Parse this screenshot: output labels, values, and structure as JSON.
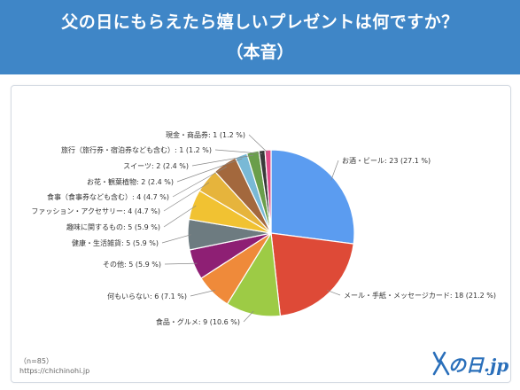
{
  "header": {
    "title": "父の日にもらえたら嬉しいプレゼントは何ですか？",
    "subtitle": "（本音）"
  },
  "footer": {
    "sample": "（n=85）",
    "url": "https://chichinohi.jp",
    "logo_text": "の日.jp"
  },
  "colors": {
    "header_bg": "#3f86c7",
    "logo": "#2a6fba"
  },
  "chart_data": {
    "type": "pie",
    "title": "",
    "start": "12 o'clock, clockwise",
    "slices": [
      {
        "label": "お酒・ビール",
        "value": 23,
        "percent": 27.1,
        "text": "お酒・ビール: 23 (27.1 %)",
        "color": "#5b9cf0"
      },
      {
        "label": "メール・手紙・メッセージカード",
        "value": 18,
        "percent": 21.2,
        "text": "メール・手紙・メッセージカード: 18 (21.2 %)",
        "color": "#de4a37"
      },
      {
        "label": "食品・グルメ",
        "value": 9,
        "percent": 10.6,
        "text": "食品・グルメ: 9 (10.6 %)",
        "color": "#9dcb45"
      },
      {
        "label": "何もいらない",
        "value": 6,
        "percent": 7.1,
        "text": "何もいらない: 6 (7.1 %)",
        "color": "#ef8a3a"
      },
      {
        "label": "その他",
        "value": 5,
        "percent": 5.9,
        "text": "その他: 5 (5.9 %)",
        "color": "#8e1f74"
      },
      {
        "label": "健康・生活雑貨",
        "value": 5,
        "percent": 5.9,
        "text": "健康・生活雑貨: 5 (5.9 %)",
        "color": "#6d7b80"
      },
      {
        "label": "趣味に関するもの",
        "value": 5,
        "percent": 5.9,
        "text": "趣味に関するもの: 5 (5.9 %)",
        "color": "#f1c232"
      },
      {
        "label": "ファッション・アクセサリー",
        "value": 4,
        "percent": 4.7,
        "text": "ファッション・アクセサリー: 4 (4.7 %)",
        "color": "#e6b43c"
      },
      {
        "label": "食事（食事券なども含む）",
        "value": 4,
        "percent": 4.7,
        "text": "食事（食事券なども含む）: 4 (4.7 %)",
        "color": "#a3683d"
      },
      {
        "label": "お花・観葉植物",
        "value": 2,
        "percent": 2.4,
        "text": "お花・観葉植物: 2 (2.4 %)",
        "color": "#79b9d6"
      },
      {
        "label": "スイーツ",
        "value": 2,
        "percent": 2.4,
        "text": "スイーツ: 2 (2.4 %)",
        "color": "#6a9e4b"
      },
      {
        "label": "旅行（旅行券・宿泊券なども含む）",
        "value": 1,
        "percent": 1.2,
        "text": "旅行（旅行券・宿泊券なども含む）: 1 (1.2 %)",
        "color": "#3a3a3a"
      },
      {
        "label": "現金・商品券",
        "value": 1,
        "percent": 1.2,
        "text": "現金・商品券: 1 (1.2 %)",
        "color": "#e14b8a"
      }
    ]
  }
}
